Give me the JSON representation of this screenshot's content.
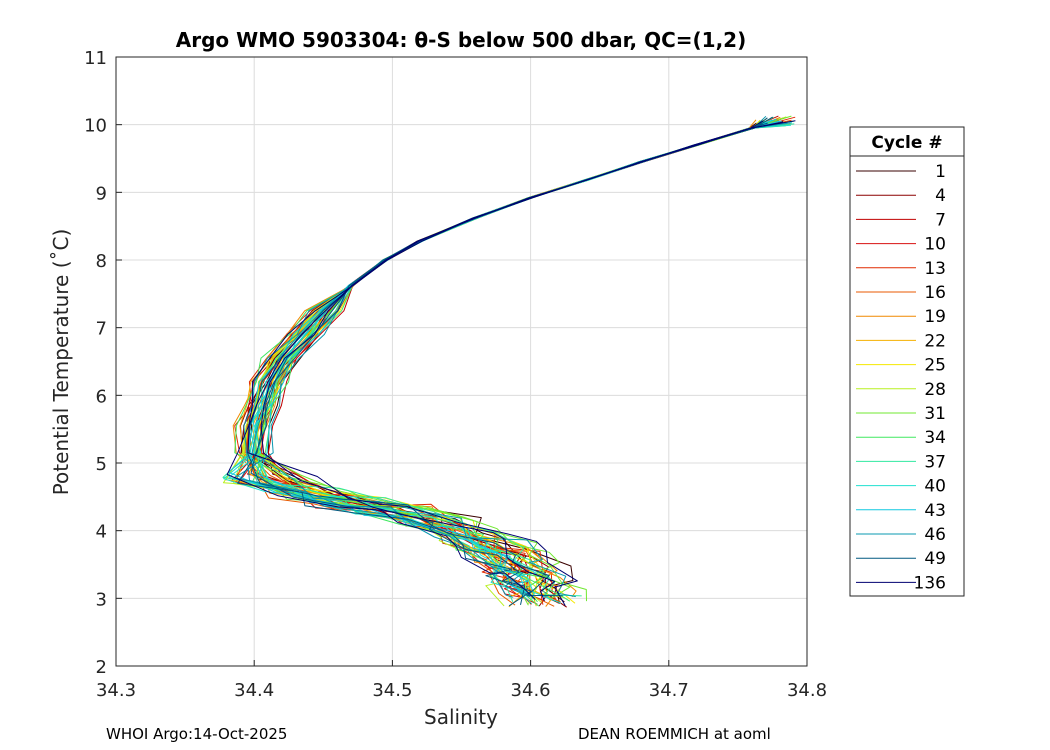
{
  "chart_data": {
    "type": "line",
    "title": "Argo WMO 5903304: θ-S below 500 dbar,  QC=(1,2)",
    "xlabel": "Salinity",
    "ylabel": "Potential Temperature (˚C)",
    "xlim": [
      34.3,
      34.8
    ],
    "ylim": [
      2,
      11
    ],
    "xticks": [
      "34.3",
      "34.4",
      "34.5",
      "34.6",
      "34.7",
      "34.8"
    ],
    "yticks": [
      "2",
      "3",
      "4",
      "5",
      "6",
      "7",
      "8",
      "9",
      "10",
      "11"
    ],
    "grid": true,
    "legend_title": "Cycle #",
    "legend_position": "right",
    "legend": [
      {
        "label": "1",
        "color": "#3a0000"
      },
      {
        "label": "4",
        "color": "#8b0000"
      },
      {
        "label": "7",
        "color": "#c00000"
      },
      {
        "label": "10",
        "color": "#d81010"
      },
      {
        "label": "13",
        "color": "#e02a00"
      },
      {
        "label": "16",
        "color": "#e85a00"
      },
      {
        "label": "19",
        "color": "#f08800"
      },
      {
        "label": "22",
        "color": "#f5b000"
      },
      {
        "label": "25",
        "color": "#f5e800"
      },
      {
        "label": "28",
        "color": "#b8f020"
      },
      {
        "label": "31",
        "color": "#70e830"
      },
      {
        "label": "34",
        "color": "#40e860"
      },
      {
        "label": "37",
        "color": "#30e8a0"
      },
      {
        "label": "40",
        "color": "#20e0d0"
      },
      {
        "label": "43",
        "color": "#10c8e0"
      },
      {
        "label": "46",
        "color": "#0898b0"
      },
      {
        "label": "49",
        "color": "#005880"
      },
      {
        "label": "136",
        "color": "#000070"
      }
    ],
    "profile_template": {
      "salinity": [
        34.793,
        34.76,
        34.72,
        34.68,
        34.64,
        34.6,
        34.56,
        34.52,
        34.495,
        34.47,
        34.45,
        34.435,
        34.42,
        34.41,
        34.405,
        34.4,
        34.398,
        34.41,
        34.44,
        34.47,
        34.5,
        34.53,
        34.55,
        34.57,
        34.585,
        34.595,
        34.6,
        34.605,
        34.61
      ],
      "temperature": [
        10.13,
        9.95,
        9.7,
        9.45,
        9.18,
        8.92,
        8.62,
        8.28,
        8.0,
        7.62,
        7.25,
        6.9,
        6.55,
        6.2,
        5.85,
        5.55,
        5.15,
        4.78,
        4.55,
        4.42,
        4.3,
        4.15,
        3.98,
        3.8,
        3.62,
        3.45,
        3.3,
        3.12,
        2.95
      ]
    }
  },
  "footer": {
    "left": "WHOI Argo:14-Oct-2025",
    "right": "DEAN ROEMMICH at aoml"
  }
}
